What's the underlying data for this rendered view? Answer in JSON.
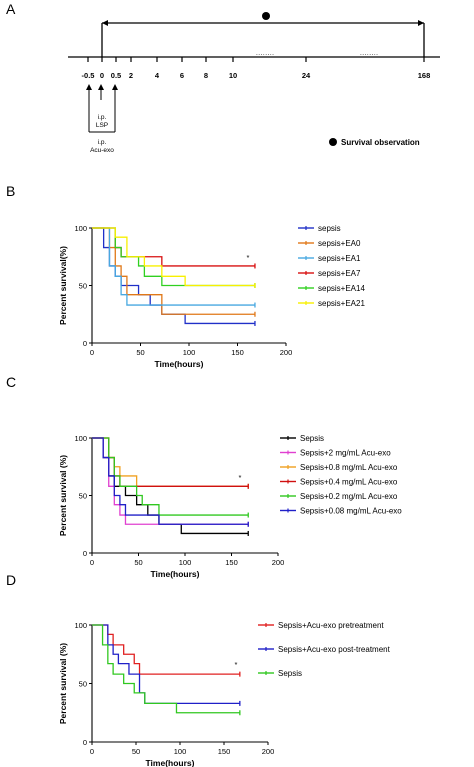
{
  "figure": {
    "panel_letters": [
      "A",
      "B",
      "C",
      "D"
    ]
  },
  "panel_a": {
    "timeline_ticks": [
      "-0.5",
      "0",
      "0.5",
      "2",
      "4",
      "6",
      "8",
      "10",
      "24",
      "168"
    ],
    "label_lsp": "i.p.\nLSP",
    "label_acu": "i.p.\nAcu-exo",
    "legend_label": "Survival observation"
  },
  "chart_data": [
    {
      "panel": "B",
      "type": "line",
      "xlabel": "Time(hours)",
      "ylabel": "Percent survival(%)",
      "xlim": [
        0,
        200
      ],
      "ylim": [
        0,
        100
      ],
      "xticks": [
        "0",
        "50",
        "100",
        "150",
        "200"
      ],
      "yticks": [
        "0",
        "50",
        "100"
      ],
      "legend_position": "right",
      "annotation": "*",
      "series": [
        {
          "name": "sepsis",
          "color": "#2030c8",
          "x": [
            0,
            12,
            18,
            24,
            30,
            48,
            60,
            72,
            96,
            168
          ],
          "y": [
            100,
            83,
            67,
            58,
            50,
            42,
            33,
            25,
            17,
            17
          ]
        },
        {
          "name": "sepsis+EA0",
          "color": "#e07818",
          "x": [
            0,
            18,
            24,
            30,
            36,
            72,
            168
          ],
          "y": [
            100,
            83,
            67,
            58,
            42,
            25,
            25
          ]
        },
        {
          "name": "sepsis+EA1",
          "color": "#48a8e0",
          "x": [
            0,
            18,
            24,
            30,
            36,
            168
          ],
          "y": [
            100,
            67,
            58,
            42,
            33,
            33
          ]
        },
        {
          "name": "sepsis+EA7",
          "color": "#d81010",
          "x": [
            0,
            24,
            30,
            36,
            72,
            168
          ],
          "y": [
            100,
            83,
            75,
            75,
            67,
            67
          ]
        },
        {
          "name": "sepsis+EA14",
          "color": "#30d020",
          "x": [
            0,
            24,
            30,
            48,
            54,
            60,
            72,
            168
          ],
          "y": [
            100,
            83,
            75,
            67,
            58,
            58,
            50,
            50
          ]
        },
        {
          "name": "sepsis+EA21",
          "color": "#f8f000",
          "x": [
            0,
            24,
            36,
            54,
            72,
            96,
            168
          ],
          "y": [
            100,
            92,
            75,
            67,
            58,
            50,
            50
          ]
        }
      ]
    },
    {
      "panel": "C",
      "type": "line",
      "xlabel": "Time(hours)",
      "ylabel": "Percent survival (%)",
      "xlim": [
        0,
        200
      ],
      "ylim": [
        0,
        100
      ],
      "xticks": [
        "0",
        "50",
        "100",
        "150",
        "200"
      ],
      "yticks": [
        "0",
        "50",
        "100"
      ],
      "legend_position": "right",
      "annotation": "*",
      "series": [
        {
          "name": "Sepsis",
          "color": "#000000",
          "x": [
            0,
            12,
            18,
            24,
            36,
            48,
            60,
            72,
            96,
            168
          ],
          "y": [
            100,
            83,
            67,
            58,
            50,
            42,
            33,
            25,
            17,
            17
          ]
        },
        {
          "name": "Sepsis+2 mg/mL Acu-exo",
          "color": "#e040d0",
          "x": [
            0,
            12,
            18,
            24,
            30,
            36,
            168
          ],
          "y": [
            100,
            83,
            58,
            42,
            33,
            25,
            25
          ]
        },
        {
          "name": "Sepsis+0.8 mg/mL Acu-exo",
          "color": "#f0a020",
          "x": [
            0,
            18,
            24,
            30,
            36,
            48,
            168
          ],
          "y": [
            100,
            83,
            75,
            67,
            67,
            58,
            58
          ]
        },
        {
          "name": "Sepsis+0.4 mg/mL Acu-exo",
          "color": "#d01010",
          "x": [
            0,
            18,
            24,
            30,
            36,
            168
          ],
          "y": [
            100,
            83,
            67,
            58,
            58,
            58
          ]
        },
        {
          "name": "Sepsis+0.2 mg/mL Acu-exo",
          "color": "#30c820",
          "x": [
            0,
            18,
            24,
            30,
            48,
            54,
            72,
            168
          ],
          "y": [
            100,
            83,
            67,
            58,
            50,
            42,
            33,
            33
          ]
        },
        {
          "name": "Sepsis+0.08 mg/mL Acu-exo",
          "color": "#2020c8",
          "x": [
            0,
            12,
            18,
            24,
            30,
            36,
            48,
            72,
            168
          ],
          "y": [
            100,
            83,
            67,
            50,
            42,
            33,
            33,
            25,
            25
          ]
        }
      ]
    },
    {
      "panel": "D",
      "type": "line",
      "xlabel": "Time(hours)",
      "ylabel": "Percent survival (%)",
      "xlim": [
        0,
        200
      ],
      "ylim": [
        0,
        100
      ],
      "xticks": [
        "0",
        "50",
        "100",
        "150",
        "200"
      ],
      "yticks": [
        "0",
        "50",
        "100"
      ],
      "legend_position": "right",
      "annotation": "*",
      "series": [
        {
          "name": "Sepsis+Acu-exo pretreatment",
          "color": "#e02020",
          "x": [
            0,
            18,
            24,
            36,
            48,
            54,
            168
          ],
          "y": [
            100,
            92,
            83,
            75,
            67,
            58,
            58
          ]
        },
        {
          "name": "Sepsis+Acu-exo post-treatment",
          "color": "#2020c8",
          "x": [
            0,
            18,
            24,
            30,
            42,
            54,
            60,
            168
          ],
          "y": [
            100,
            83,
            75,
            67,
            58,
            42,
            33,
            33
          ]
        },
        {
          "name": "Sepsis",
          "color": "#30c820",
          "x": [
            0,
            12,
            18,
            24,
            36,
            48,
            60,
            72,
            96,
            168
          ],
          "y": [
            100,
            83,
            67,
            58,
            50,
            42,
            33,
            33,
            25,
            25
          ]
        }
      ]
    }
  ]
}
